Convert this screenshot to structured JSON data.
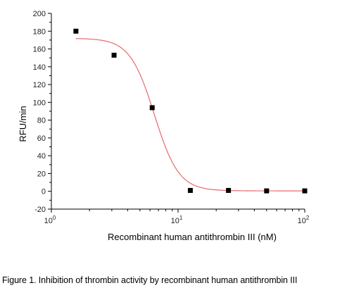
{
  "chart_data": {
    "type": "scatter",
    "title": "",
    "xlabel": "Recombinant human antithrombin III (nM)",
    "ylabel": "RFU/min",
    "xscale": "log",
    "xlim": [
      1,
      100
    ],
    "ylim": [
      -20,
      200
    ],
    "x_ticks": [
      {
        "base": "10",
        "exp": "0"
      },
      {
        "base": "10",
        "exp": "1"
      },
      {
        "base": "10",
        "exp": "2"
      }
    ],
    "y_ticks": [
      -20,
      0,
      20,
      40,
      60,
      80,
      100,
      120,
      140,
      160,
      180,
      200
    ],
    "grid": false,
    "series": [
      {
        "type": "scatter",
        "marker": "square",
        "color": "#000000",
        "x": [
          1.5625,
          3.125,
          6.25,
          12.5,
          25,
          50,
          100
        ],
        "y": [
          180,
          153,
          94,
          1,
          1,
          0.5,
          0.5
        ]
      },
      {
        "type": "fit-curve",
        "color": "#e8696b",
        "top": 172,
        "bottom": 0.5,
        "ec50": 6.5,
        "hill": 4.5
      }
    ]
  },
  "caption": "Figure 1. Inhibition of thrombin activity by recombinant human antithrombin III"
}
